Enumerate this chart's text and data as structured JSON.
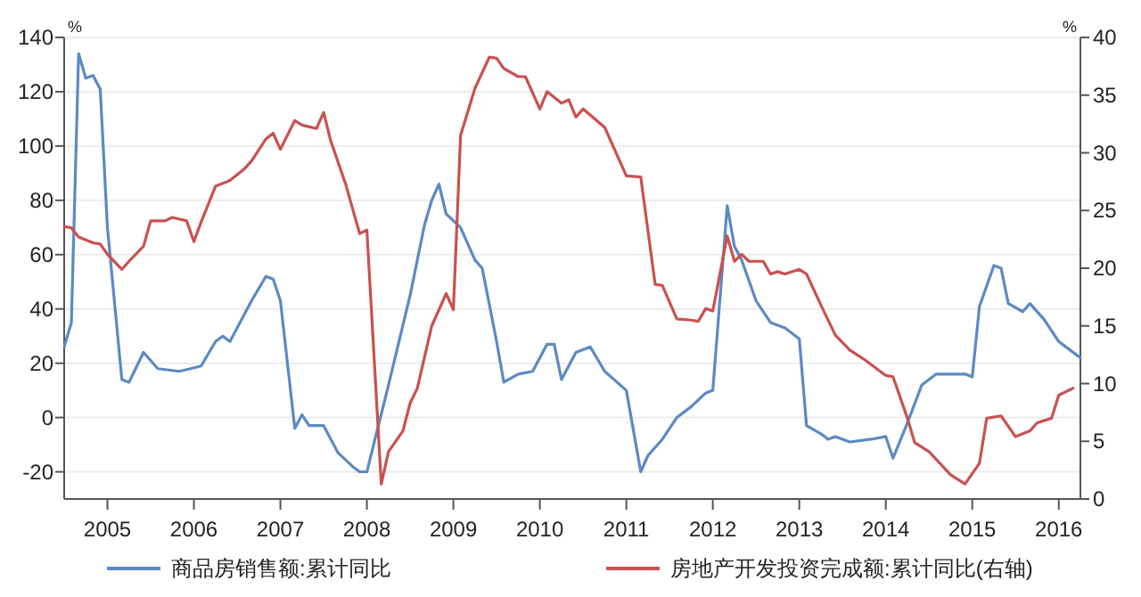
{
  "chart_data": {
    "type": "line",
    "ylabel": "%",
    "y2label": "%",
    "xlim": [
      "2004-07",
      "2016-04"
    ],
    "xticks": [
      {
        "value": "2005-01",
        "label": "2005"
      },
      {
        "value": "2006-01",
        "label": "2006"
      },
      {
        "value": "2007-01",
        "label": "2007"
      },
      {
        "value": "2008-01",
        "label": "2008"
      },
      {
        "value": "2009-01",
        "label": "2009"
      },
      {
        "value": "2010-01",
        "label": "2010"
      },
      {
        "value": "2011-01",
        "label": "2011"
      },
      {
        "value": "2012-01",
        "label": "2012"
      },
      {
        "value": "2013-01",
        "label": "2013"
      },
      {
        "value": "2014-01",
        "label": "2014"
      },
      {
        "value": "2015-01",
        "label": "2015"
      },
      {
        "value": "2016-01",
        "label": "2016"
      }
    ],
    "ylim": [
      -30,
      140
    ],
    "yticks": [
      -20,
      0,
      20,
      40,
      60,
      80,
      100,
      120,
      140
    ],
    "y2lim": [
      0,
      40
    ],
    "y2ticks": [
      0,
      5,
      10,
      15,
      20,
      25,
      30,
      35,
      40
    ],
    "grid": "y",
    "legend": "bottom",
    "marker": "none",
    "line_style": "solid",
    "series": [
      {
        "name": "商品房销售额:累计同比",
        "color": "#5b8ac3",
        "x": [
          "2004-07",
          "2004-08",
          "2004-09",
          "2004-10",
          "2004-11",
          "2004-12",
          "2005-01",
          "2005-03",
          "2005-04",
          "2005-06",
          "2005-08",
          "2005-11",
          "2006-02",
          "2006-04",
          "2006-05",
          "2006-06",
          "2006-09",
          "2006-11",
          "2006-12",
          "2007-01",
          "2007-03",
          "2007-04",
          "2007-05",
          "2007-07",
          "2007-09",
          "2007-11",
          "2007-12",
          "2008-01",
          "2008-04",
          "2008-07",
          "2008-09",
          "2008-10",
          "2008-11",
          "2008-12",
          "2009-02",
          "2009-04",
          "2009-05",
          "2009-07",
          "2009-08",
          "2009-10",
          "2009-12",
          "2010-02",
          "2010-03",
          "2010-04",
          "2010-06",
          "2010-08",
          "2010-10",
          "2011-01",
          "2011-03",
          "2011-04",
          "2011-06",
          "2011-08",
          "2011-10",
          "2011-12",
          "2012-01",
          "2012-03",
          "2012-04",
          "2012-05",
          "2012-07",
          "2012-09",
          "2012-11",
          "2013-01",
          "2013-02",
          "2013-04",
          "2013-05",
          "2013-06",
          "2013-08",
          "2013-11",
          "2014-01",
          "2014-02",
          "2014-04",
          "2014-06",
          "2014-08",
          "2014-11",
          "2014-12",
          "2015-01",
          "2015-02",
          "2015-04",
          "2015-05",
          "2015-06",
          "2015-08",
          "2015-09",
          "2015-11",
          "2016-01",
          "2016-02",
          "2016-04"
        ],
        "values": [
          26,
          35,
          134,
          125,
          126,
          121,
          70,
          14,
          13,
          24,
          18,
          17,
          19,
          28,
          30,
          28,
          43,
          52,
          51,
          43,
          -4,
          1,
          -3,
          -3,
          -13,
          -18,
          -20,
          -20,
          12,
          45,
          71,
          80,
          86,
          75,
          70,
          58,
          55,
          28,
          13,
          16,
          17,
          27,
          27,
          14,
          24,
          26,
          17,
          10,
          -20,
          -14,
          -8,
          0,
          4,
          9,
          10,
          78,
          63,
          58,
          43,
          35,
          33,
          29,
          -3,
          -6,
          -8,
          -7,
          -9,
          -8,
          -7,
          -15,
          -2,
          12,
          16,
          16,
          16,
          15,
          41,
          56,
          55,
          42,
          39,
          42,
          36,
          28,
          26,
          22
        ]
      },
      {
        "name": "房地产开发投资完成额:累计同比(右轴)",
        "color": "#c9514f",
        "axis": "y2",
        "x": [
          "2004-07",
          "2004-08",
          "2004-09",
          "2004-11",
          "2004-12",
          "2005-01",
          "2005-03",
          "2005-04",
          "2005-06",
          "2005-07",
          "2005-09",
          "2005-10",
          "2005-12",
          "2006-01",
          "2006-02",
          "2006-04",
          "2006-06",
          "2006-08",
          "2006-09",
          "2006-11",
          "2006-12",
          "2007-01",
          "2007-03",
          "2007-04",
          "2007-06",
          "2007-07",
          "2007-08",
          "2007-10",
          "2007-12",
          "2008-01",
          "2008-03",
          "2008-04",
          "2008-06",
          "2008-07",
          "2008-08",
          "2008-10",
          "2008-12",
          "2009-01",
          "2009-02",
          "2009-04",
          "2009-06",
          "2009-07",
          "2009-08",
          "2009-10",
          "2009-11",
          "2010-01",
          "2010-02",
          "2010-04",
          "2010-05",
          "2010-06",
          "2010-07",
          "2010-10",
          "2010-12",
          "2011-01",
          "2011-03",
          "2011-05",
          "2011-06",
          "2011-08",
          "2011-10",
          "2011-11",
          "2011-12",
          "2012-01",
          "2012-03",
          "2012-04",
          "2012-05",
          "2012-06",
          "2012-08",
          "2012-09",
          "2012-10",
          "2012-11",
          "2013-01",
          "2013-02",
          "2013-04",
          "2013-06",
          "2013-08",
          "2013-10",
          "2014-01",
          "2014-02",
          "2014-04",
          "2014-05",
          "2014-07",
          "2014-10",
          "2014-12",
          "2015-02",
          "2015-03",
          "2015-05",
          "2015-07",
          "2015-09",
          "2015-10",
          "2015-12",
          "2016-01",
          "2016-03"
        ],
        "values": [
          23.6,
          23.5,
          22.7,
          22.2,
          22.1,
          21.2,
          19.9,
          20.6,
          21.9,
          24.1,
          24.1,
          24.4,
          24.1,
          22.3,
          24,
          27.1,
          27.6,
          28.6,
          29.3,
          31.2,
          31.7,
          30.3,
          32.8,
          32.4,
          32.1,
          33.5,
          31,
          27.4,
          23,
          23.3,
          1.3,
          4.1,
          5.9,
          8.3,
          9.6,
          15,
          17.8,
          16.4,
          31.5,
          35.6,
          38.3,
          38.2,
          37.3,
          36.6,
          36.6,
          33.8,
          35.3,
          34.3,
          34.6,
          33.1,
          33.8,
          32.2,
          29.4,
          28,
          27.9,
          18.6,
          18.5,
          15.6,
          15.5,
          15.4,
          16.5,
          16.3,
          22.8,
          20.6,
          21.2,
          20.6,
          20.6,
          19.5,
          19.7,
          19.5,
          19.9,
          19.5,
          16.8,
          14.2,
          12.9,
          12.1,
          10.7,
          10.6,
          7,
          4.9,
          4.1,
          2.1,
          1.3,
          3.1,
          7,
          7.2,
          5.4,
          5.9,
          6.6,
          7,
          9,
          9.6
        ]
      }
    ]
  }
}
